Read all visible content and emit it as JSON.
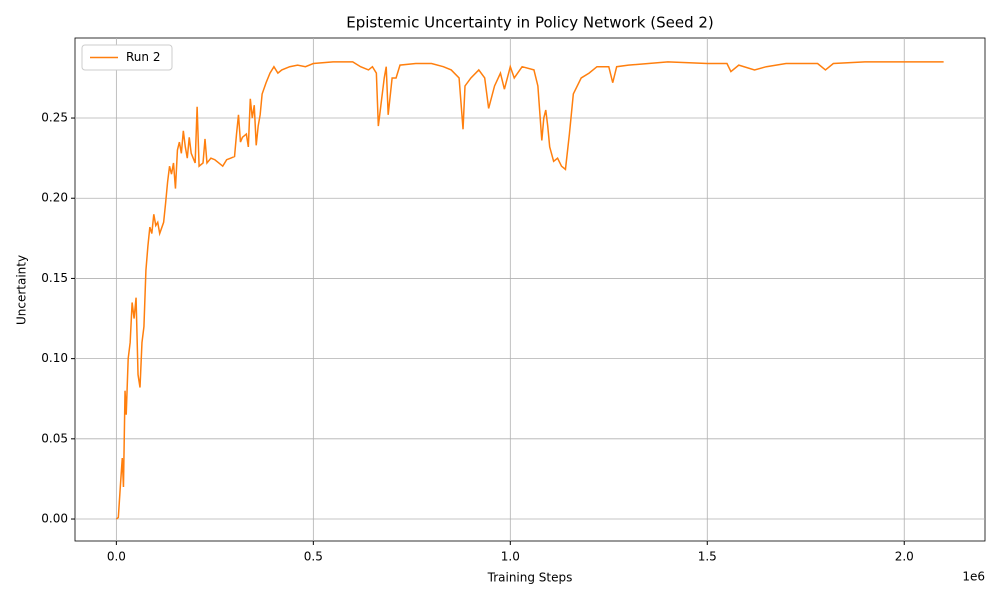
{
  "chart_data": {
    "type": "line",
    "title": "Epistemic Uncertainty in Policy Network (Seed 2)",
    "x_label": "Training Steps",
    "y_label": "Uncertainty",
    "x_offset_label": "1e6",
    "xlim": [
      -105000,
      2205000
    ],
    "ylim": [
      -0.0137,
      0.2999
    ],
    "xticks": [
      {
        "value": 0,
        "label": "0.0"
      },
      {
        "value": 500000,
        "label": "0.5"
      },
      {
        "value": 1000000,
        "label": "1.0"
      },
      {
        "value": 1500000,
        "label": "1.5"
      },
      {
        "value": 2000000,
        "label": "2.0"
      }
    ],
    "yticks": [
      {
        "value": 0,
        "label": "0.00"
      },
      {
        "value": 0.05,
        "label": "0.05"
      },
      {
        "value": 0.1,
        "label": "0.10"
      },
      {
        "value": 0.15,
        "label": "0.15"
      },
      {
        "value": 0.2,
        "label": "0.20"
      },
      {
        "value": 0.25,
        "label": "0.25"
      }
    ],
    "grid": true,
    "legend": "upper-left",
    "x": [
      0,
      5000,
      10000,
      15000,
      18000,
      22000,
      25000,
      30000,
      35000,
      40000,
      45000,
      50000,
      55000,
      60000,
      65000,
      70000,
      75000,
      80000,
      85000,
      90000,
      95000,
      100000,
      105000,
      110000,
      120000,
      125000,
      130000,
      135000,
      140000,
      145000,
      150000,
      155000,
      160000,
      165000,
      170000,
      175000,
      180000,
      185000,
      190000,
      200000,
      205000,
      210000,
      220000,
      225000,
      230000,
      240000,
      250000,
      260000,
      270000,
      280000,
      290000,
      300000,
      305000,
      310000,
      315000,
      320000,
      330000,
      335000,
      340000,
      345000,
      350000,
      355000,
      360000,
      365000,
      370000,
      380000,
      390000,
      400000,
      410000,
      420000,
      440000,
      460000,
      480000,
      500000,
      550000,
      600000,
      620000,
      640000,
      650000,
      660000,
      665000,
      670000,
      680000,
      685000,
      690000,
      700000,
      710000,
      720000,
      760000,
      800000,
      830000,
      850000,
      870000,
      880000,
      885000,
      900000,
      920000,
      935000,
      945000,
      960000,
      975000,
      985000,
      1000000,
      1010000,
      1030000,
      1060000,
      1070000,
      1080000,
      1085000,
      1090000,
      1095000,
      1100000,
      1110000,
      1120000,
      1130000,
      1140000,
      1150000,
      1160000,
      1180000,
      1200000,
      1220000,
      1250000,
      1260000,
      1270000,
      1300000,
      1400000,
      1500000,
      1550000,
      1560000,
      1580000,
      1620000,
      1650000,
      1700000,
      1780000,
      1800000,
      1820000,
      1900000,
      2000000,
      2100000
    ],
    "series": [
      {
        "name": "Run 2",
        "color": "#ff7f0e",
        "values": [
          0,
          0.001,
          0.02,
          0.038,
          0.02,
          0.08,
          0.065,
          0.1,
          0.11,
          0.135,
          0.125,
          0.138,
          0.09,
          0.082,
          0.11,
          0.12,
          0.155,
          0.17,
          0.182,
          0.178,
          0.19,
          0.183,
          0.185,
          0.178,
          0.185,
          0.197,
          0.21,
          0.22,
          0.215,
          0.222,
          0.206,
          0.23,
          0.235,
          0.228,
          0.242,
          0.232,
          0.225,
          0.238,
          0.228,
          0.222,
          0.257,
          0.22,
          0.222,
          0.237,
          0.222,
          0.225,
          0.224,
          0.222,
          0.22,
          0.224,
          0.225,
          0.226,
          0.24,
          0.252,
          0.235,
          0.238,
          0.24,
          0.232,
          0.262,
          0.25,
          0.258,
          0.233,
          0.245,
          0.252,
          0.265,
          0.272,
          0.278,
          0.282,
          0.278,
          0.28,
          0.282,
          0.283,
          0.282,
          0.284,
          0.285,
          0.285,
          0.282,
          0.28,
          0.282,
          0.278,
          0.245,
          0.255,
          0.275,
          0.282,
          0.252,
          0.275,
          0.275,
          0.283,
          0.284,
          0.284,
          0.282,
          0.28,
          0.275,
          0.243,
          0.27,
          0.275,
          0.28,
          0.275,
          0.256,
          0.27,
          0.278,
          0.268,
          0.282,
          0.275,
          0.282,
          0.28,
          0.27,
          0.236,
          0.25,
          0.255,
          0.245,
          0.232,
          0.223,
          0.225,
          0.22,
          0.218,
          0.24,
          0.265,
          0.275,
          0.278,
          0.282,
          0.282,
          0.272,
          0.282,
          0.283,
          0.285,
          0.284,
          0.284,
          0.279,
          0.283,
          0.28,
          0.282,
          0.284,
          0.284,
          0.28,
          0.284,
          0.285,
          0.285,
          0.285
        ]
      }
    ]
  }
}
